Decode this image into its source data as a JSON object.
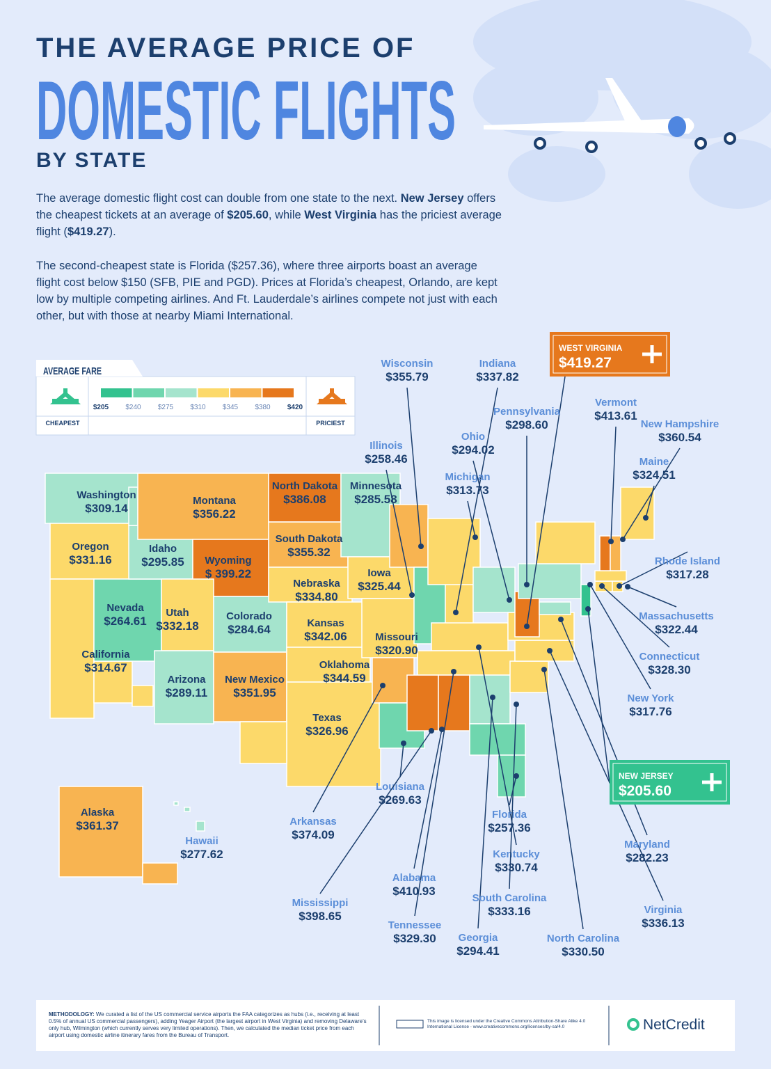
{
  "header": {
    "line1": "THE AVERAGE PRICE OF",
    "line2": "DOMESTIC FLIGHTS",
    "line3": "BY STATE"
  },
  "intro": [
    [
      {
        "text": "The average domestic flight cost can double from one state to the next. "
      },
      {
        "text": "New Jersey",
        "bold": true
      },
      {
        "text": " offers the cheapest tickets at an average of "
      },
      {
        "text": "$205.60",
        "bold": true
      },
      {
        "text": ", while "
      },
      {
        "text": "West Virginia",
        "bold": true
      },
      {
        "text": " has the priciest average flight ("
      },
      {
        "text": "$419.27",
        "bold": true
      },
      {
        "text": ")."
      }
    ],
    [
      {
        "text": "The second-cheapest state is Florida ($257.36), where three airports boast an average flight cost below $150 (SFB, PIE and PGD). Prices at Florida’s cheapest, Orlando, are kept low by multiple competing airlines. And Ft. Lauderdale’s airlines compete not just with each other, but with those at nearby Miami International."
      }
    ]
  ],
  "legend": {
    "title": "AVERAGE FARE",
    "ticks": [
      "$205",
      "$240",
      "$275",
      "$310",
      "$345",
      "$380",
      "$420"
    ],
    "colors": [
      "#33c28f",
      "#6fd6ae",
      "#a5e4cd",
      "#fcd96a",
      "#f8b451",
      "#e6781d"
    ],
    "low": "CHEAPEST",
    "high": "PRICIEST"
  },
  "states": [
    {
      "name": "Washington",
      "price": "$309.14",
      "color": "#a5e4cd"
    },
    {
      "name": "Oregon",
      "price": "$331.16",
      "color": "#fcd96a"
    },
    {
      "name": "California",
      "price": "$314.67",
      "color": "#fcd96a"
    },
    {
      "name": "Nevada",
      "price": "$264.61",
      "color": "#6fd6ae"
    },
    {
      "name": "Idaho",
      "price": "$295.85",
      "color": "#a5e4cd"
    },
    {
      "name": "Montana",
      "price": "$356.22",
      "color": "#f8b451"
    },
    {
      "name": "Wyoming",
      "price": "$ 399.22",
      "color": "#e6781d"
    },
    {
      "name": "Utah",
      "price": "$332.18",
      "color": "#fcd96a"
    },
    {
      "name": "Colorado",
      "price": "$284.64",
      "color": "#a5e4cd"
    },
    {
      "name": "Arizona",
      "price": "$289.11",
      "color": "#a5e4cd"
    },
    {
      "name": "New Mexico",
      "price": "$351.95",
      "color": "#f8b451"
    },
    {
      "name": "North Dakota",
      "price": "$386.08",
      "color": "#e6781d"
    },
    {
      "name": "South Dakota",
      "price": "$355.32",
      "color": "#f8b451"
    },
    {
      "name": "Nebraska",
      "price": "$334.80",
      "color": "#fcd96a"
    },
    {
      "name": "Kansas",
      "price": "$342.06",
      "color": "#fcd96a"
    },
    {
      "name": "Oklahoma",
      "price": "$344.59",
      "color": "#fcd96a"
    },
    {
      "name": "Texas",
      "price": "$326.96",
      "color": "#fcd96a"
    },
    {
      "name": "Minnesota",
      "price": "$285.58",
      "color": "#a5e4cd"
    },
    {
      "name": "Iowa",
      "price": "$325.44",
      "color": "#fcd96a"
    },
    {
      "name": "Missouri",
      "price": "$320.90",
      "color": "#fcd96a"
    },
    {
      "name": "Arkansas",
      "price": "$374.09",
      "color": "#f8b451"
    },
    {
      "name": "Louisiana",
      "price": "$269.63",
      "color": "#6fd6ae"
    },
    {
      "name": "Wisconsin",
      "price": "$355.79",
      "color": "#f8b451"
    },
    {
      "name": "Illinois",
      "price": "$258.46",
      "color": "#6fd6ae"
    },
    {
      "name": "Indiana",
      "price": "$337.82",
      "color": "#fcd96a"
    },
    {
      "name": "Michigan",
      "price": "$313.73",
      "color": "#fcd96a"
    },
    {
      "name": "Ohio",
      "price": "$294.02",
      "color": "#a5e4cd"
    },
    {
      "name": "Kentucky",
      "price": "$330.74",
      "color": "#fcd96a"
    },
    {
      "name": "Tennessee",
      "price": "$329.30",
      "color": "#fcd96a"
    },
    {
      "name": "Mississippi",
      "price": "$398.65",
      "color": "#e6781d"
    },
    {
      "name": "Alabama",
      "price": "$410.93",
      "color": "#e6781d"
    },
    {
      "name": "Georgia",
      "price": "$294.41",
      "color": "#a5e4cd"
    },
    {
      "name": "Florida",
      "price": "$257.36",
      "color": "#6fd6ae"
    },
    {
      "name": "South Carolina",
      "price": "$333.16",
      "color": "#fcd96a"
    },
    {
      "name": "North Carolina",
      "price": "$330.50",
      "color": "#fcd96a"
    },
    {
      "name": "Virginia",
      "price": "$336.13",
      "color": "#fcd96a"
    },
    {
      "name": "WEST VIRGINIA",
      "price": "$419.27",
      "color": "#e6781d"
    },
    {
      "name": "Maryland",
      "price": "$282.23",
      "color": "#a5e4cd"
    },
    {
      "name": "Pennsylvania",
      "price": "$298.60",
      "color": "#a5e4cd"
    },
    {
      "name": "New York",
      "price": "$317.76",
      "color": "#fcd96a"
    },
    {
      "name": "NEW JERSEY",
      "price": "$205.60",
      "color": "#33c28f"
    },
    {
      "name": "Connecticut",
      "price": "$328.30",
      "color": "#fcd96a"
    },
    {
      "name": "Rhode Island",
      "price": "$317.28",
      "color": "#fcd96a"
    },
    {
      "name": "Massachusetts",
      "price": "$322.44",
      "color": "#fcd96a"
    },
    {
      "name": "Vermont",
      "price": "$413.61",
      "color": "#e6781d"
    },
    {
      "name": "New Hampshire",
      "price": "$360.54",
      "color": "#f8b451"
    },
    {
      "name": "Maine",
      "price": "$324.51",
      "color": "#fcd96a"
    },
    {
      "name": "Alaska",
      "price": "$361.37",
      "color": "#f8b451"
    },
    {
      "name": "Hawaii",
      "price": "$277.62",
      "color": "#a5e4cd"
    }
  ],
  "footer": {
    "methodology_label": "METHODOLOGY:",
    "methodology": "We curated a list of the US commercial service airports the FAA categorizes as hubs (i.e., receiving at least 0.5% of annual US commercial passengers), adding Yeager Airport (the largest airport in West Virginia) and removing Delaware’s only hub, Wilmington (which currently serves very limited operations). Then, we calculated the median ticket price from each airport using domestic airline itinerary fares from the Bureau of Transport.",
    "license": "This image is licensed under the Creative Commons Attribution-Share Alike 4.0 International License - www.creativecommons.org/licenses/by-sa/4.0",
    "brand": "NetCredit"
  }
}
